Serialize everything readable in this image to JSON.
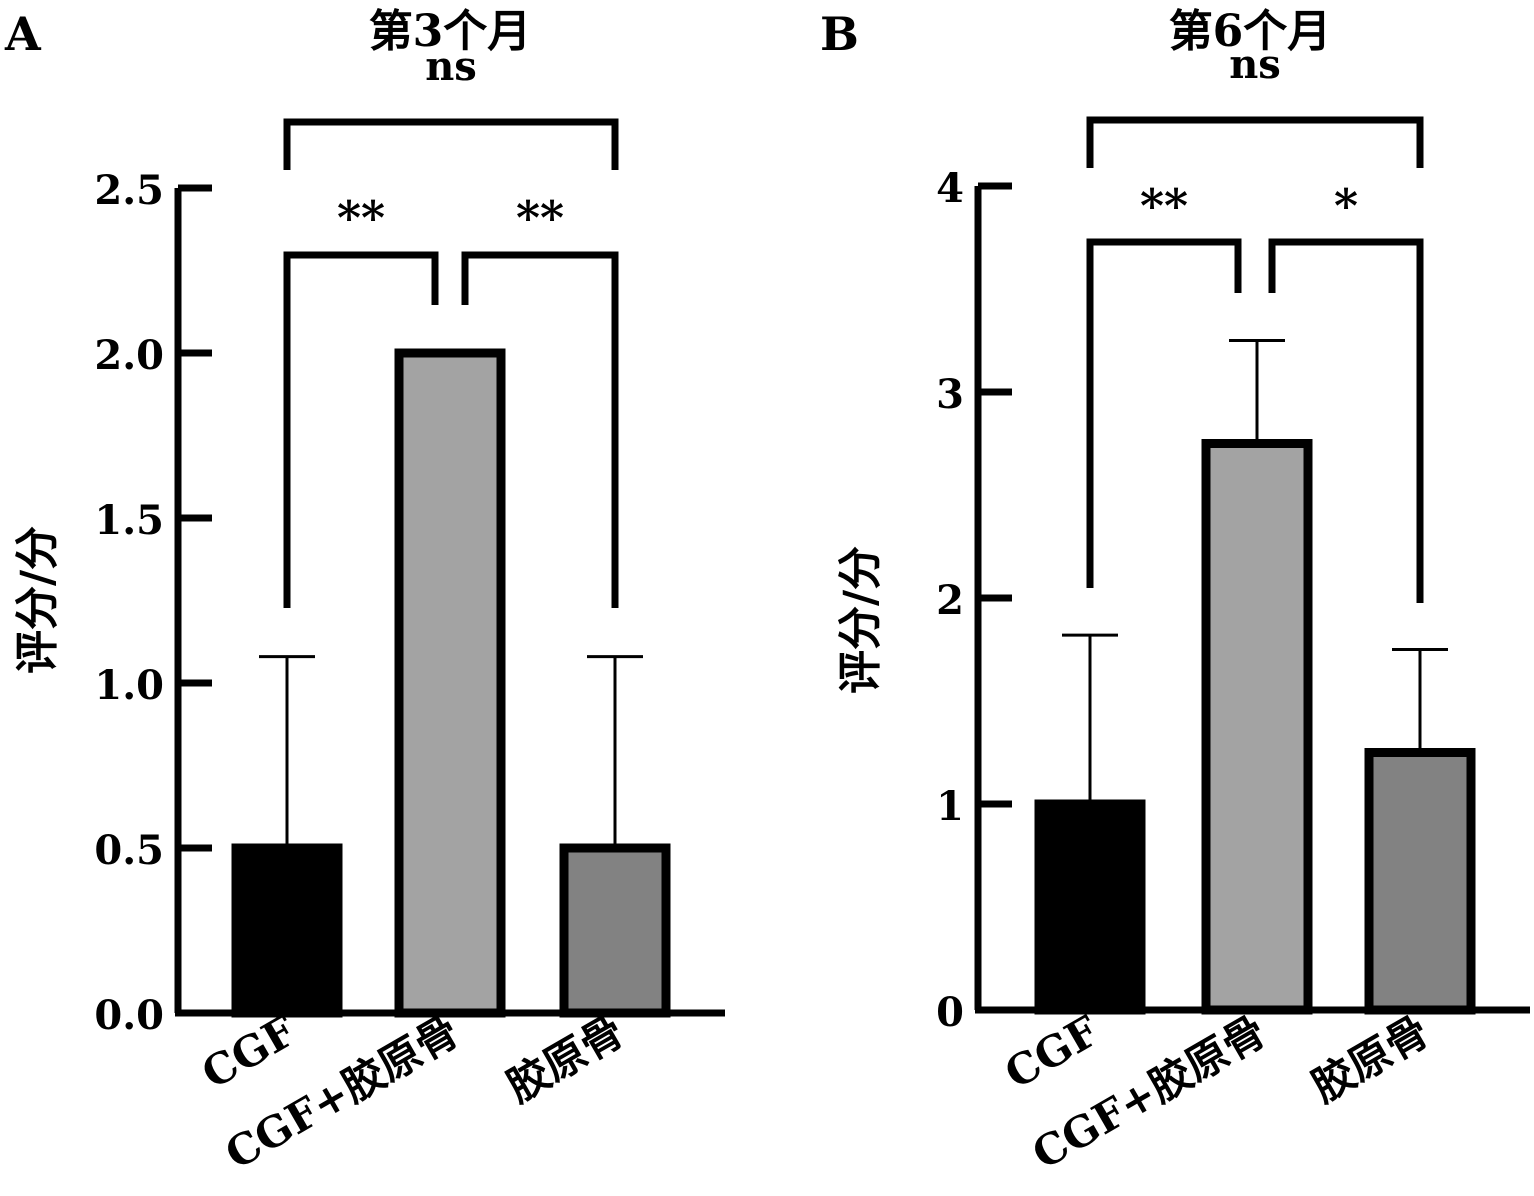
{
  "chart_data": [
    {
      "type": "bar",
      "panel": "A",
      "title": "第3个月",
      "ylabel": "评分/分",
      "categories": [
        "CGF",
        "CGF+胶原骨",
        "胶原骨"
      ],
      "values": [
        0.5,
        2.0,
        0.5
      ],
      "errors": [
        0.58,
        0.0,
        0.58
      ],
      "colors": [
        "#000000",
        "#a3a3a3",
        "#828282"
      ],
      "ylim": [
        0,
        2.5
      ],
      "yticks": [
        "0.0",
        "0.5",
        "1.0",
        "1.5",
        "2.0",
        "2.5"
      ],
      "significance": [
        {
          "from": 0,
          "to": 1,
          "label": "**"
        },
        {
          "from": 1,
          "to": 2,
          "label": "**"
        },
        {
          "from": 0,
          "to": 2,
          "label": "ns"
        }
      ]
    },
    {
      "type": "bar",
      "panel": "B",
      "title": "第6个月",
      "ylabel": "评分/分",
      "categories": [
        "CGF",
        "CGF+胶原骨",
        "胶原骨"
      ],
      "values": [
        1.0,
        2.75,
        1.25
      ],
      "errors": [
        0.82,
        0.5,
        0.5
      ],
      "colors": [
        "#000000",
        "#a3a3a3",
        "#828282"
      ],
      "ylim": [
        0,
        4
      ],
      "yticks": [
        "0",
        "1",
        "2",
        "3",
        "4"
      ],
      "significance": [
        {
          "from": 0,
          "to": 1,
          "label": "**"
        },
        {
          "from": 1,
          "to": 2,
          "label": "*"
        },
        {
          "from": 0,
          "to": 2,
          "label": "ns"
        }
      ]
    }
  ]
}
